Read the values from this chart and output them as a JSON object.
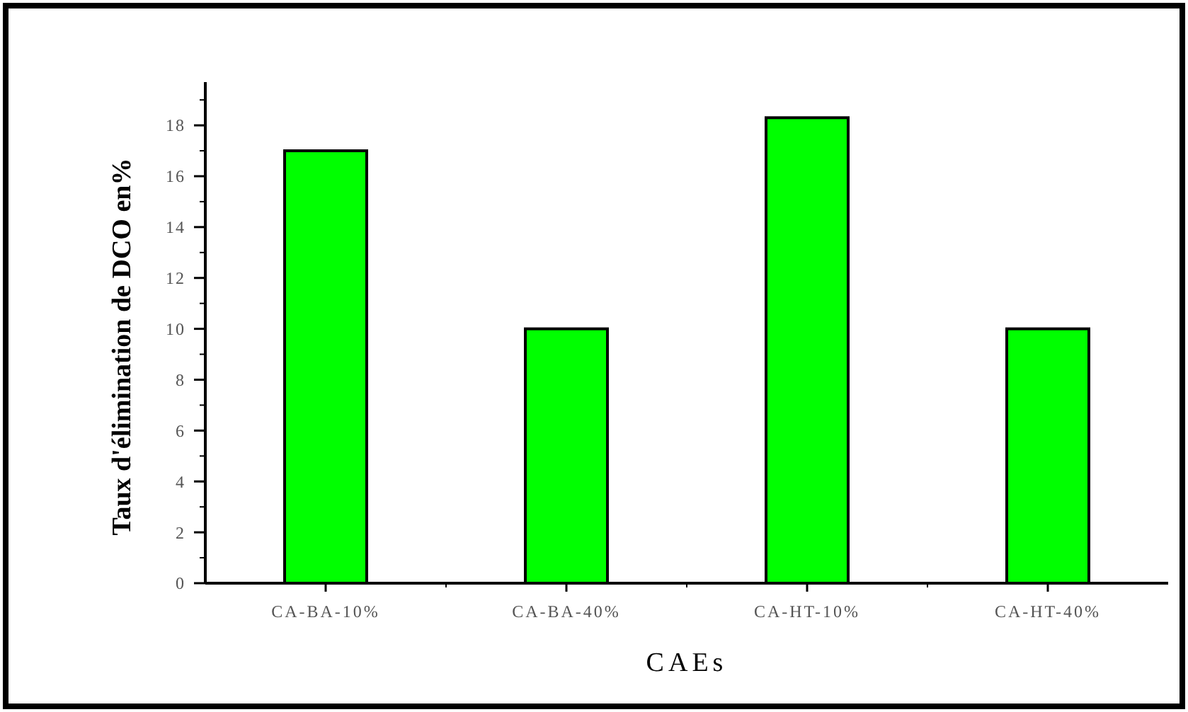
{
  "chart_data": {
    "type": "bar",
    "xlabel": "CAEs",
    "ylabel": "Taux d'élimination de DCO en%",
    "categories": [
      "CA-BA-10%",
      "CA-BA-40%",
      "CA-HT-10%",
      "CA-HT-40%"
    ],
    "values": [
      17,
      10,
      18.3,
      10
    ],
    "color": "#00ff00",
    "ylim": [
      0,
      19.7
    ],
    "yticks": [
      0,
      2,
      4,
      6,
      8,
      10,
      12,
      14,
      16,
      18
    ]
  }
}
